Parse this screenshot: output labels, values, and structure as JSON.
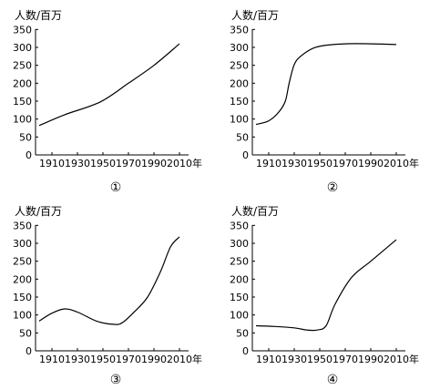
{
  "shared": {
    "y_unit_label": "人数/百万",
    "x_ticks": [
      "1910",
      "1930",
      "1950",
      "1970",
      "1990",
      "2010"
    ],
    "x_suffix": "年",
    "y_ticks": [
      "0",
      "50",
      "100",
      "150",
      "200",
      "250",
      "300",
      "350"
    ]
  },
  "chart_data": [
    {
      "type": "line",
      "panel_label": "①",
      "x_axis": {
        "range": [
          1890,
          2020
        ],
        "ticks": [
          1910,
          1930,
          1950,
          1970,
          1990,
          2010
        ]
      },
      "y_axis": {
        "range": [
          0,
          350
        ],
        "ticks": [
          0,
          50,
          100,
          150,
          200,
          250,
          300,
          350
        ]
      },
      "grid": false,
      "series": [
        {
          "x": [
            1900,
            1920,
            1948,
            1970,
            1990,
            2010
          ],
          "y": [
            82,
            112,
            148,
            200,
            250,
            310
          ]
        }
      ]
    },
    {
      "type": "line",
      "panel_label": "②",
      "x_axis": {
        "range": [
          1890,
          2020
        ],
        "ticks": [
          1910,
          1930,
          1950,
          1970,
          1990,
          2010
        ]
      },
      "y_axis": {
        "range": [
          0,
          350
        ],
        "ticks": [
          0,
          50,
          100,
          150,
          200,
          250,
          300,
          350
        ]
      },
      "grid": false,
      "series": [
        {
          "x": [
            1900,
            1910,
            1918,
            1923,
            1926,
            1930,
            1935,
            1945,
            1955,
            1970,
            1990,
            2010
          ],
          "y": [
            85,
            95,
            120,
            150,
            200,
            252,
            275,
            298,
            306,
            310,
            310,
            308
          ]
        }
      ]
    },
    {
      "type": "line",
      "panel_label": "③",
      "x_axis": {
        "range": [
          1890,
          2020
        ],
        "ticks": [
          1910,
          1930,
          1950,
          1970,
          1990,
          2010
        ]
      },
      "y_axis": {
        "range": [
          0,
          350
        ],
        "ticks": [
          0,
          50,
          100,
          150,
          200,
          250,
          300,
          350
        ]
      },
      "grid": false,
      "series": [
        {
          "x": [
            1900,
            1910,
            1920,
            1930,
            1945,
            1958,
            1965,
            1975,
            1985,
            1995,
            2003,
            2010
          ],
          "y": [
            83,
            105,
            117,
            108,
            83,
            74,
            78,
            110,
            150,
            220,
            290,
            318
          ]
        }
      ]
    },
    {
      "type": "line",
      "panel_label": "④",
      "x_axis": {
        "range": [
          1890,
          2020
        ],
        "ticks": [
          1910,
          1930,
          1950,
          1970,
          1990,
          2010
        ]
      },
      "y_axis": {
        "range": [
          0,
          350
        ],
        "ticks": [
          0,
          50,
          100,
          150,
          200,
          250,
          300,
          350
        ]
      },
      "grid": false,
      "series": [
        {
          "x": [
            1900,
            1915,
            1930,
            1940,
            1948,
            1955,
            1962,
            1975,
            1990,
            2010
          ],
          "y": [
            70,
            68,
            64,
            58,
            58,
            70,
            130,
            205,
            250,
            310
          ]
        }
      ]
    }
  ]
}
